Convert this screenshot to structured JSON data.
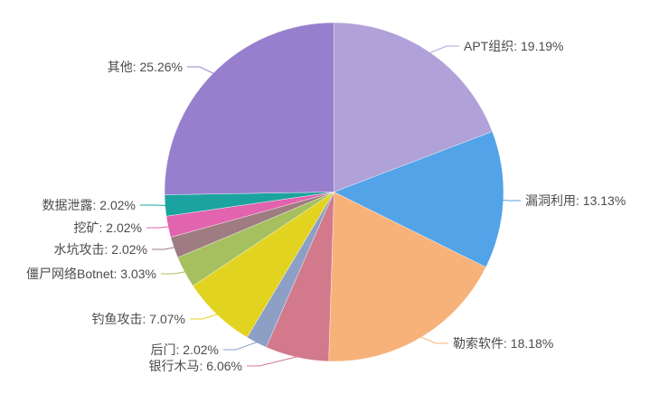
{
  "chart_data": {
    "type": "pie",
    "title": "",
    "unit": "%",
    "background": "#ffffff",
    "text_color": "#4c4c4c",
    "legend": "none",
    "label_style": "outside-with-leader-lines",
    "direction": "clockwise",
    "start_angle": "top",
    "slices": [
      {
        "name": "APT组织",
        "value": 19.19,
        "label": "APT组织: 19.19%",
        "color": "#b0a1d8"
      },
      {
        "name": "漏洞利用",
        "value": 13.13,
        "label": "漏洞利用: 13.13%",
        "color": "#52a3e8"
      },
      {
        "name": "勒索软件",
        "value": 18.18,
        "label": "勒索软件: 18.18%",
        "color": "#f7b279"
      },
      {
        "name": "银行木马",
        "value": 6.06,
        "label": "银行木马: 6.06%",
        "color": "#d2798b"
      },
      {
        "name": "后门",
        "value": 2.02,
        "label": "后门: 2.02%",
        "color": "#8d9fc5"
      },
      {
        "name": "钓鱼攻击",
        "value": 7.07,
        "label": "钓鱼攻击: 7.07%",
        "color": "#e3d321"
      },
      {
        "name": "僵尸网络Botnet",
        "value": 3.03,
        "label": "僵尸网络Botnet: 3.03%",
        "color": "#a6c05f"
      },
      {
        "name": "水坑攻击",
        "value": 2.02,
        "label": "水坑攻击: 2.02%",
        "color": "#9e7c81"
      },
      {
        "name": "挖矿",
        "value": 2.02,
        "label": "挖矿: 2.02%",
        "color": "#e263ae"
      },
      {
        "name": "数据泄露",
        "value": 2.02,
        "label": "数据泄露: 2.02%",
        "color": "#1ba39f"
      },
      {
        "name": "其他",
        "value": 25.26,
        "label": "其他: 25.26%",
        "color": "#987fce"
      }
    ]
  }
}
